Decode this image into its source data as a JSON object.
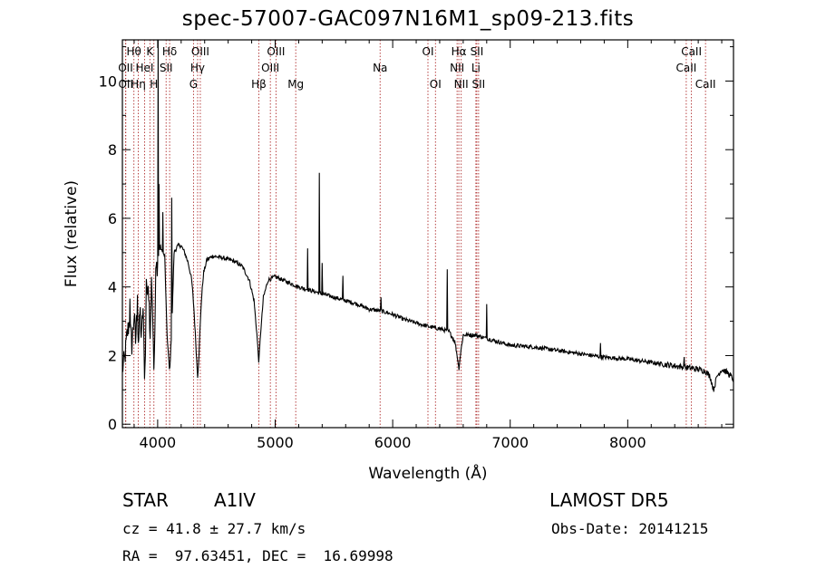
{
  "title": "spec-57007-GAC097N16M1_sp09-213.fits",
  "info": {
    "class": "STAR",
    "subclass": "A1IV",
    "survey": "LAMOST DR5",
    "cz": "cz = 41.8 ± 27.7 km/s",
    "obsdate": "Obs-Date: 20141215",
    "radec": "RA =  97.63451, DEC =  16.69998"
  },
  "colors": {
    "line": "#000000",
    "marker": "#b03030",
    "background": "#ffffff"
  },
  "chart_data": {
    "type": "line",
    "title": "spec-57007-GAC097N16M1_sp09-213.fits",
    "xlabel": "Wavelength (Å)",
    "ylabel": "Flux (relative)",
    "xlim": [
      3700,
      8900
    ],
    "ylim": [
      -0.1,
      11.2
    ],
    "xticks": [
      4000,
      5000,
      6000,
      7000,
      8000
    ],
    "yticks": [
      0,
      2,
      4,
      6,
      8,
      10
    ],
    "grid": false,
    "legend": "none",
    "lines": [
      {
        "name": "Hθ",
        "x": 3798,
        "row": 0
      },
      {
        "name": "K",
        "x": 3934,
        "row": 0
      },
      {
        "name": "Hδ",
        "x": 4102,
        "row": 0
      },
      {
        "name": "OIII",
        "x": 4363,
        "row": 0
      },
      {
        "name": "OIII",
        "x": 5007,
        "row": 0
      },
      {
        "name": "OI",
        "x": 6300,
        "row": 0
      },
      {
        "name": "Hα",
        "x": 6563,
        "row": 0
      },
      {
        "name": "SII",
        "x": 6716,
        "row": 0
      },
      {
        "name": "CaII",
        "x": 8542,
        "row": 0
      },
      {
        "name": "OII",
        "x": 3727,
        "row": 1
      },
      {
        "name": "HeI",
        "x": 3889,
        "row": 1
      },
      {
        "name": "SII",
        "x": 4072,
        "row": 1
      },
      {
        "name": "Hγ",
        "x": 4340,
        "row": 1
      },
      {
        "name": "OIII",
        "x": 4959,
        "row": 1
      },
      {
        "name": "Na",
        "x": 5893,
        "row": 1
      },
      {
        "name": "NII",
        "x": 6548,
        "row": 1
      },
      {
        "name": "Li",
        "x": 6708,
        "row": 1
      },
      {
        "name": "CaII",
        "x": 8498,
        "row": 1
      },
      {
        "name": "OII",
        "x": 3729,
        "row": 2
      },
      {
        "name": "Hη",
        "x": 3835,
        "row": 2
      },
      {
        "name": "H",
        "x": 3968,
        "row": 2
      },
      {
        "name": "G",
        "x": 4305,
        "row": 2
      },
      {
        "name": "Hβ",
        "x": 4861,
        "row": 2
      },
      {
        "name": "Mg",
        "x": 5175,
        "row": 2
      },
      {
        "name": "OI",
        "x": 6364,
        "row": 2
      },
      {
        "name": "NII",
        "x": 6583,
        "row": 2
      },
      {
        "name": "SII",
        "x": 6731,
        "row": 2
      },
      {
        "name": "CaII",
        "x": 8662,
        "row": 2
      }
    ],
    "anchors": [
      [
        3700,
        1.6
      ],
      [
        3720,
        1.9
      ],
      [
        3740,
        2.6
      ],
      [
        3760,
        3.0
      ],
      [
        3780,
        2.3
      ],
      [
        3800,
        3.2
      ],
      [
        3812,
        2.4
      ],
      [
        3825,
        3.3
      ],
      [
        3838,
        2.3
      ],
      [
        3850,
        3.4
      ],
      [
        3862,
        2.4
      ],
      [
        3875,
        3.5
      ],
      [
        3890,
        1.3
      ],
      [
        3905,
        3.8
      ],
      [
        3920,
        4.1
      ],
      [
        3934,
        2.6
      ],
      [
        3950,
        4.4
      ],
      [
        3970,
        1.5
      ],
      [
        3985,
        4.5
      ],
      [
        4000,
        4.7
      ],
      [
        4020,
        5.2
      ],
      [
        4040,
        5.0
      ],
      [
        4060,
        4.9
      ],
      [
        4080,
        2.6
      ],
      [
        4102,
        1.5
      ],
      [
        4120,
        2.8
      ],
      [
        4140,
        5.0
      ],
      [
        4170,
        5.2
      ],
      [
        4200,
        5.2
      ],
      [
        4230,
        5.0
      ],
      [
        4260,
        4.7
      ],
      [
        4290,
        4.2
      ],
      [
        4310,
        3.3
      ],
      [
        4330,
        2.0
      ],
      [
        4340,
        1.4
      ],
      [
        4350,
        1.9
      ],
      [
        4370,
        3.5
      ],
      [
        4390,
        4.4
      ],
      [
        4420,
        4.8
      ],
      [
        4470,
        4.9
      ],
      [
        4550,
        4.85
      ],
      [
        4650,
        4.75
      ],
      [
        4720,
        4.6
      ],
      [
        4780,
        4.2
      ],
      [
        4820,
        3.6
      ],
      [
        4845,
        2.6
      ],
      [
        4861,
        1.8
      ],
      [
        4875,
        2.6
      ],
      [
        4900,
        3.7
      ],
      [
        4940,
        4.2
      ],
      [
        5000,
        4.3
      ],
      [
        5100,
        4.15
      ],
      [
        5200,
        4.0
      ],
      [
        5300,
        3.9
      ],
      [
        5400,
        3.8
      ],
      [
        5500,
        3.7
      ],
      [
        5600,
        3.6
      ],
      [
        5700,
        3.5
      ],
      [
        5800,
        3.35
      ],
      [
        5900,
        3.3
      ],
      [
        6000,
        3.2
      ],
      [
        6100,
        3.05
      ],
      [
        6200,
        2.95
      ],
      [
        6300,
        2.85
      ],
      [
        6400,
        2.78
      ],
      [
        6480,
        2.7
      ],
      [
        6530,
        2.4
      ],
      [
        6553,
        1.9
      ],
      [
        6563,
        1.6
      ],
      [
        6575,
        2.0
      ],
      [
        6600,
        2.6
      ],
      [
        6700,
        2.6
      ],
      [
        6800,
        2.5
      ],
      [
        6900,
        2.4
      ],
      [
        7000,
        2.3
      ],
      [
        7200,
        2.25
      ],
      [
        7400,
        2.15
      ],
      [
        7600,
        2.05
      ],
      [
        7800,
        1.95
      ],
      [
        8000,
        1.9
      ],
      [
        8200,
        1.8
      ],
      [
        8400,
        1.7
      ],
      [
        8600,
        1.6
      ],
      [
        8660,
        1.55
      ],
      [
        8700,
        1.4
      ],
      [
        8730,
        1.0
      ],
      [
        8760,
        1.4
      ],
      [
        8800,
        1.6
      ],
      [
        8850,
        1.5
      ],
      [
        8900,
        1.3
      ]
    ],
    "spikes": [
      [
        3765,
        0.8
      ],
      [
        3830,
        0.7
      ],
      [
        3905,
        0.6
      ],
      [
        4003,
        6.5
      ],
      [
        4012,
        2.0
      ],
      [
        4045,
        1.2
      ],
      [
        4120,
        3.8
      ],
      [
        5275,
        1.2
      ],
      [
        5375,
        3.5
      ],
      [
        5400,
        0.9
      ],
      [
        5577,
        0.7
      ],
      [
        5900,
        0.4
      ],
      [
        6466,
        1.8
      ],
      [
        6800,
        1.0
      ],
      [
        7770,
        0.4
      ],
      [
        8480,
        0.3
      ]
    ]
  }
}
